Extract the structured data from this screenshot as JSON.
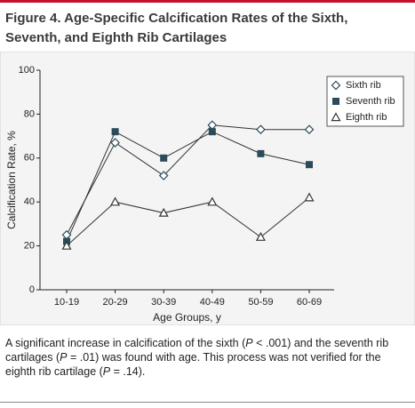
{
  "chart_data": {
    "type": "line",
    "title": "Figure 4. Age-Specific Calcification Rates of the Sixth, Seventh, and Eighth Rib Cartilages",
    "x_label": "Age Groups, y",
    "y_label": "Calcification Rate, %",
    "categories": [
      "10-19",
      "20-29",
      "30-39",
      "40-49",
      "50-59",
      "60-69"
    ],
    "series": [
      {
        "name": "Sixth rib",
        "color": "#2b4a5a",
        "marker": "diamond",
        "values": [
          25,
          67,
          52,
          75,
          73,
          73
        ]
      },
      {
        "name": "Seventh rib",
        "color": "#2b4a5a",
        "marker": "square",
        "values": [
          22,
          72,
          60,
          72,
          62,
          57
        ]
      },
      {
        "name": "Eighth rib",
        "color": "#333333",
        "marker": "triangle",
        "values": [
          20,
          40,
          35,
          40,
          24,
          42
        ]
      }
    ],
    "ylim": [
      0,
      100
    ],
    "yticks": [
      0,
      20,
      40,
      60,
      80,
      100
    ],
    "legend": "upper right",
    "caption": [
      "A significant increase in calcification of the sixth (",
      "P",
      " < .001) and the seventh rib cartilages (",
      "P",
      " = .01) was found with age. This process was not verified for the eighth rib cartilage (",
      "P",
      " = .14)."
    ]
  }
}
